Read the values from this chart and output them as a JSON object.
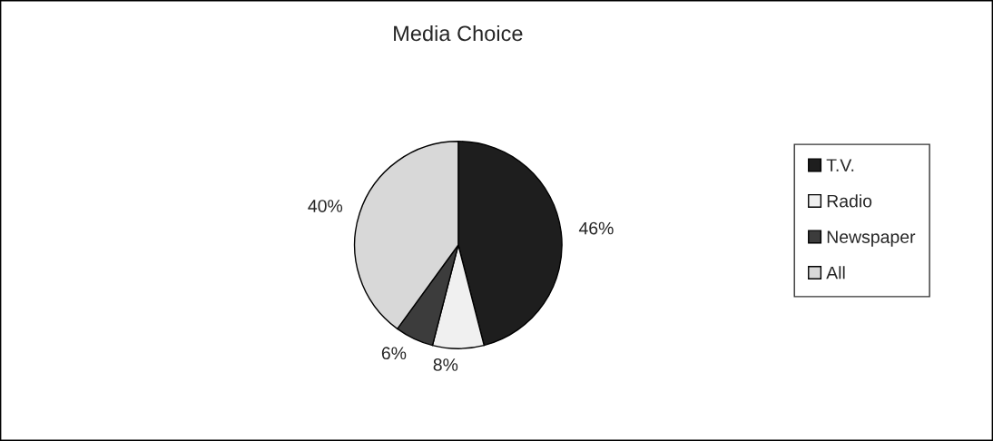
{
  "chart_data": {
    "type": "pie",
    "title": "Media Choice",
    "categories": [
      "T.V.",
      "Radio",
      "Newspaper",
      "All"
    ],
    "values": [
      46,
      8,
      6,
      40
    ],
    "colors": [
      "#1e1e1e",
      "#f0f0f0",
      "#3c3c3c",
      "#d8d8d8"
    ],
    "value_labels": [
      "46%",
      "8%",
      "6%",
      "40%"
    ],
    "legend": "right"
  }
}
